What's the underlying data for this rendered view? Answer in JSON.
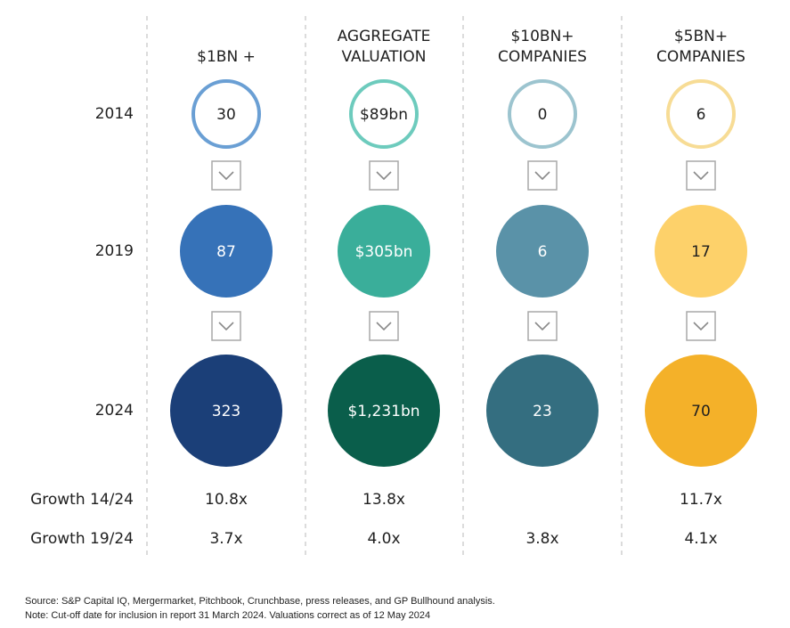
{
  "chart_data": {
    "type": "bubble-grid",
    "columns": [
      {
        "label_lines": [
          "$1BN +"
        ],
        "ring_color": "#6a9fd4",
        "colors": [
          "#6a9fd4",
          "#3672b8",
          "#1b3f78"
        ]
      },
      {
        "label_lines": [
          "AGGREGATE",
          "VALUATION"
        ],
        "ring_color": "#6dcbbd",
        "colors": [
          "#6dcbbd",
          "#3aae9a",
          "#0a5e4b"
        ]
      },
      {
        "label_lines": [
          "$10BN+",
          "COMPANIES"
        ],
        "ring_color": "#9cc4cf",
        "colors": [
          "#9cc4cf",
          "#5a92a8",
          "#346e80"
        ]
      },
      {
        "label_lines": [
          "$5BN+",
          "COMPANIES"
        ],
        "ring_color": "#f7dc95",
        "colors": [
          "#f7dc95",
          "#fdd16a",
          "#f4b129"
        ]
      }
    ],
    "rows": [
      "2014",
      "2019",
      "2024"
    ],
    "value_labels": [
      [
        "30",
        "87",
        "323"
      ],
      [
        "$89bn",
        "$305bn",
        "$1,231bn"
      ],
      [
        "0",
        "6",
        "23"
      ],
      [
        "6",
        "17",
        "70"
      ]
    ],
    "growth": [
      {
        "label": "Growth 14/24",
        "values": [
          "10.8x",
          "13.8x",
          "",
          "11.7x"
        ]
      },
      {
        "label": "Growth 19/24",
        "values": [
          "3.7x",
          "4.0x",
          "3.8x",
          "4.1x"
        ]
      }
    ]
  },
  "footnotes": {
    "source": "Source: S&P Capital IQ, Mergermarket, Pitchbook, Crunchbase, press releases, and GP Bullhound analysis.",
    "note": "Note: Cut-off date for inclusion in report 31 March 2024. Valuations correct as of 12 May 2024"
  }
}
